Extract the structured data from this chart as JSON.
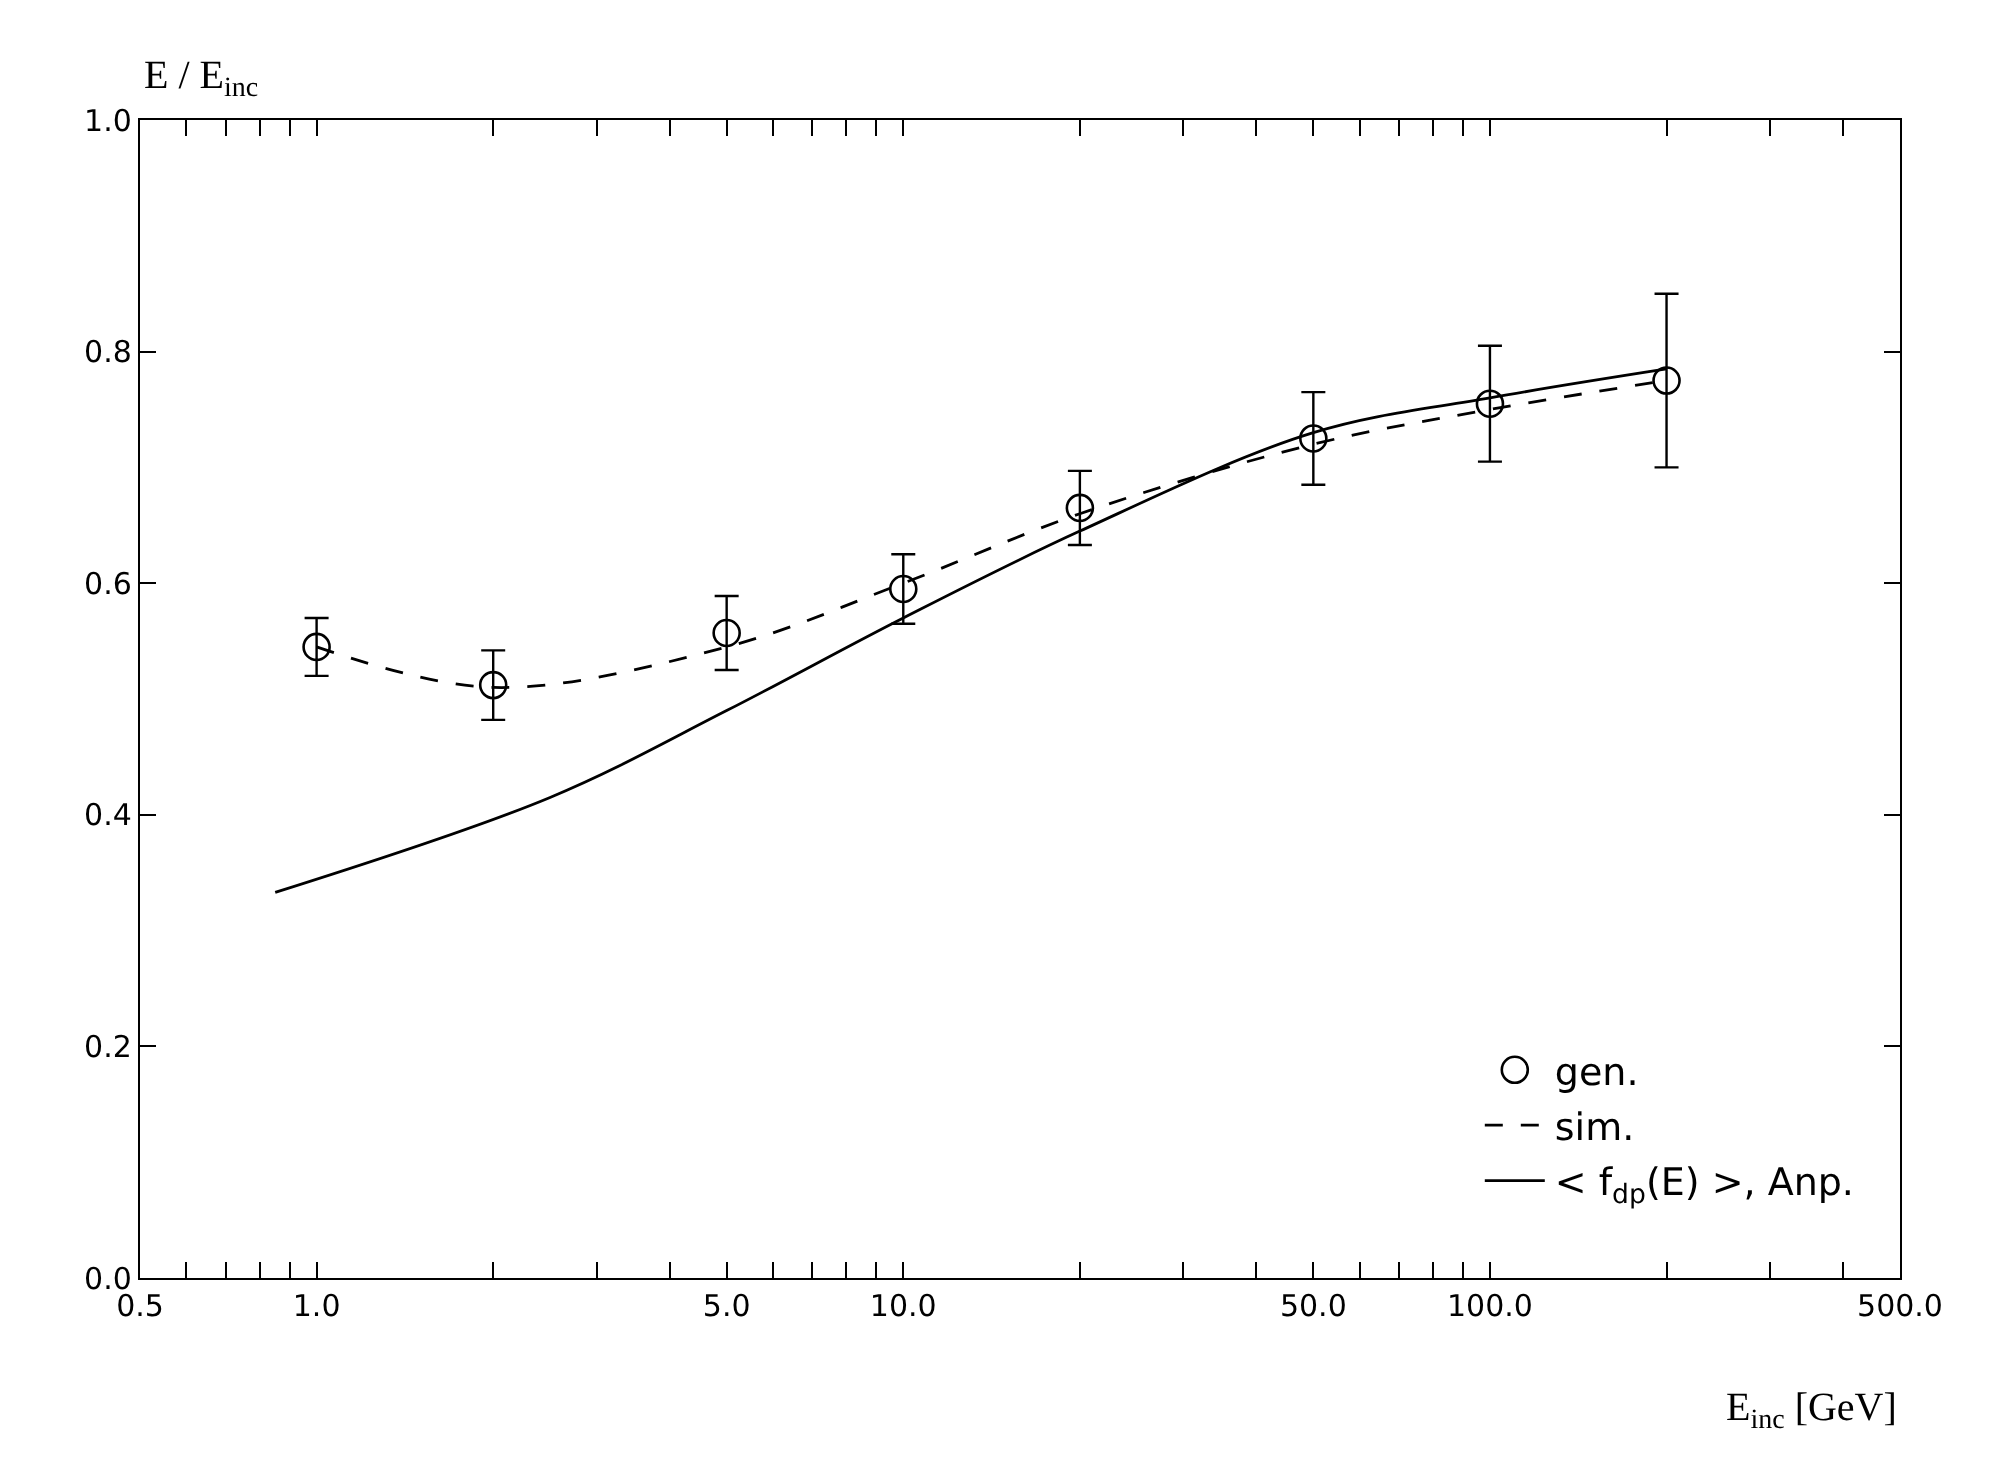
{
  "chart_data": {
    "type": "line",
    "xlabel": "E$_{inc}$ [GeV]",
    "ylabel": "E / E$_{inc}$",
    "log": "x",
    "xlim": [
      0.5,
      500
    ],
    "ylim": [
      0,
      1.0
    ],
    "xticks": [
      0.5,
      {
        "value": 0.6,
        "label": null
      },
      {
        "value": 0.7,
        "label": null
      },
      {
        "value": 0.8,
        "label": null
      },
      {
        "value": 0.9,
        "label": null
      },
      {
        "value": 1,
        "label": "1.0"
      },
      {
        "value": 2,
        "label": null
      },
      {
        "value": 3,
        "label": null
      },
      {
        "value": 4,
        "label": null
      },
      {
        "value": 5,
        "label": "5.0"
      },
      {
        "value": 6,
        "label": null
      },
      {
        "value": 7,
        "label": null
      },
      {
        "value": 8,
        "label": null
      },
      {
        "value": 9,
        "label": null
      },
      {
        "value": 10,
        "label": "10.0"
      },
      {
        "value": 20,
        "label": null
      },
      {
        "value": 30,
        "label": null
      },
      {
        "value": 40,
        "label": null
      },
      {
        "value": 50,
        "label": "50.0"
      },
      {
        "value": 60,
        "label": null
      },
      {
        "value": 70,
        "label": null
      },
      {
        "value": 80,
        "label": null
      },
      {
        "value": 90,
        "label": null
      },
      {
        "value": 100,
        "label": "100.0"
      },
      {
        "value": 200,
        "label": null
      },
      {
        "value": 300,
        "label": null
      },
      {
        "value": 400,
        "label": null
      },
      {
        "value": 500,
        "label": "500.0"
      }
    ],
    "yticks": [
      {
        "value": 0,
        "label": "0.0"
      },
      0.2,
      0.4,
      0.6,
      0.8,
      {
        "value": 1.0,
        "label": "1.0"
      }
    ],
    "grid": false,
    "legend": "bottom right",
    "series": [
      {
        "name": "gen.",
        "type": "scatter",
        "marker": "circle",
        "color": "#000000",
        "x": [
          1,
          2,
          5,
          10,
          20,
          50,
          100,
          200
        ],
        "values": [
          0.545,
          0.512,
          0.557,
          0.595,
          0.665,
          0.725,
          0.755,
          0.775
        ],
        "errors": [
          0.025,
          0.03,
          0.032,
          0.03,
          0.032,
          0.04,
          0.05,
          0.075
        ]
      },
      {
        "name": "sim.",
        "line_style": "dashed",
        "color": "#000000",
        "x": [
          1,
          2,
          5,
          10,
          20,
          50,
          100,
          200
        ],
        "values": [
          0.545,
          0.51,
          0.545,
          0.6,
          0.66,
          0.72,
          0.75,
          0.775
        ]
      },
      {
        "name": "< f$_{dp}$(E) >, Anp.",
        "line_style": "solid",
        "color": "#000000",
        "x": [
          0.85,
          2.5,
          5,
          10,
          20,
          50,
          100,
          200
        ],
        "values": [
          0.333,
          0.415,
          0.49,
          0.57,
          0.645,
          0.73,
          0.76,
          0.785
        ]
      }
    ]
  }
}
